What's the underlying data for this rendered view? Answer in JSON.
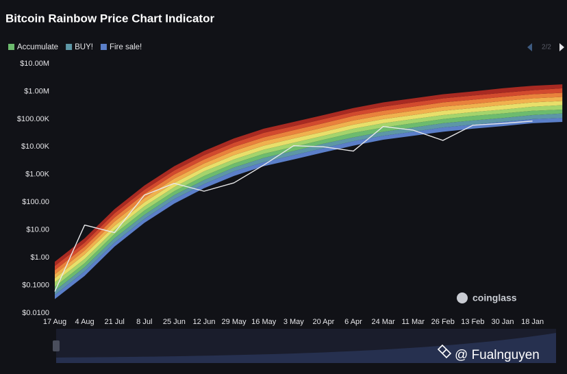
{
  "chart_data": {
    "type": "rainbow",
    "title": "Bitcoin Rainbow Price Chart Indicator",
    "pager": "2/2",
    "watermark": "coinglass",
    "credit": "@ Fualnguyen",
    "log_scale": true,
    "categories": [
      "17 Aug",
      "4 Aug",
      "21 Jul",
      "8 Jul",
      "25 Jun",
      "12 Jun",
      "29 May",
      "16 May",
      "3 May",
      "20 Apr",
      "6 Apr",
      "24 Mar",
      "11 Mar",
      "26 Feb",
      "13 Feb",
      "30 Jan",
      "18 Jan",
      null
    ],
    "ylim": [
      0.01,
      10000000
    ],
    "yticks": [
      {
        "value": 0.01,
        "label": "$0.0100"
      },
      {
        "value": 0.1,
        "label": "$0.1000"
      },
      {
        "value": 1,
        "label": "$1.00"
      },
      {
        "value": 10,
        "label": "$10.00"
      },
      {
        "value": 100,
        "label": "$100.00"
      },
      {
        "value": 1000,
        "label": "$1.00K"
      },
      {
        "value": 10000,
        "label": "$10.00K"
      },
      {
        "value": 100000,
        "label": "$100.00K"
      },
      {
        "value": 1000000,
        "label": "$1.00M"
      },
      {
        "value": 10000000,
        "label": "$10.00M"
      }
    ],
    "band_floor": [
      0.032,
      0.22,
      2.5,
      18,
      89,
      320,
      890,
      2000,
      3500,
      6300,
      11000,
      18000,
      25000,
      35000,
      45000,
      56000,
      71000,
      79000
    ],
    "series": [
      {
        "name": "Fire sale!",
        "color": "#5b7fc9",
        "values": [
          0.045,
          0.32,
          3.5,
          25,
          130,
          450,
          1300,
          2800,
          5000,
          8900,
          16000,
          25000,
          35000,
          50000,
          63000,
          79000,
          100000,
          110000
        ]
      },
      {
        "name": "BUY!",
        "color": "#5d97a6",
        "values": [
          0.063,
          0.45,
          5,
          35,
          180,
          630,
          1800,
          4000,
          7100,
          13000,
          22000,
          35000,
          50000,
          71000,
          89000,
          110000,
          140000,
          160000
        ]
      },
      {
        "name": "Accumulate",
        "color": "#6dbb6e",
        "values": [
          0.089,
          0.63,
          7.1,
          50,
          250,
          890,
          2500,
          5600,
          10000,
          18000,
          32000,
          50000,
          71000,
          100000,
          130000,
          160000,
          200000,
          220000
        ]
      },
      {
        "color": "#a4d46c",
        "values": [
          0.13,
          0.89,
          10,
          71,
          350,
          1300,
          3500,
          7900,
          14000,
          25000,
          45000,
          71000,
          100000,
          140000,
          180000,
          220000,
          280000,
          320000
        ]
      },
      {
        "color": "#e8df6a",
        "values": [
          0.18,
          1.3,
          14,
          100,
          500,
          1800,
          5000,
          11000,
          20000,
          35000,
          63000,
          100000,
          140000,
          200000,
          250000,
          320000,
          400000,
          450000
        ]
      },
      {
        "color": "#f0b14e",
        "values": [
          0.25,
          1.8,
          20,
          140,
          710,
          2500,
          7100,
          16000,
          28000,
          50000,
          89000,
          140000,
          200000,
          280000,
          350000,
          450000,
          560000,
          630000
        ]
      },
      {
        "color": "#e9823c",
        "values": [
          0.35,
          2.5,
          28,
          200,
          1000,
          3500,
          10000,
          22000,
          40000,
          71000,
          130000,
          200000,
          280000,
          400000,
          500000,
          630000,
          790000,
          890000
        ]
      },
      {
        "color": "#d24a2e",
        "values": [
          0.5,
          3.5,
          40,
          280,
          1400,
          5000,
          14000,
          32000,
          56000,
          100000,
          180000,
          280000,
          400000,
          560000,
          710000,
          890000,
          1100000,
          1300000
        ]
      },
      {
        "color": "#a82a22",
        "values": [
          0.71,
          5,
          56,
          400,
          2000,
          7100,
          20000,
          45000,
          79000,
          140000,
          250000,
          400000,
          560000,
          790000,
          1000000,
          1300000,
          1600000,
          1800000
        ]
      }
    ],
    "line": {
      "color": "#e8e8ea",
      "values": [
        0.06,
        15,
        8,
        180,
        480,
        250,
        500,
        2200,
        11000,
        10000,
        7000,
        54000,
        40000,
        17000,
        60000,
        70000,
        85000,
        null
      ]
    }
  }
}
